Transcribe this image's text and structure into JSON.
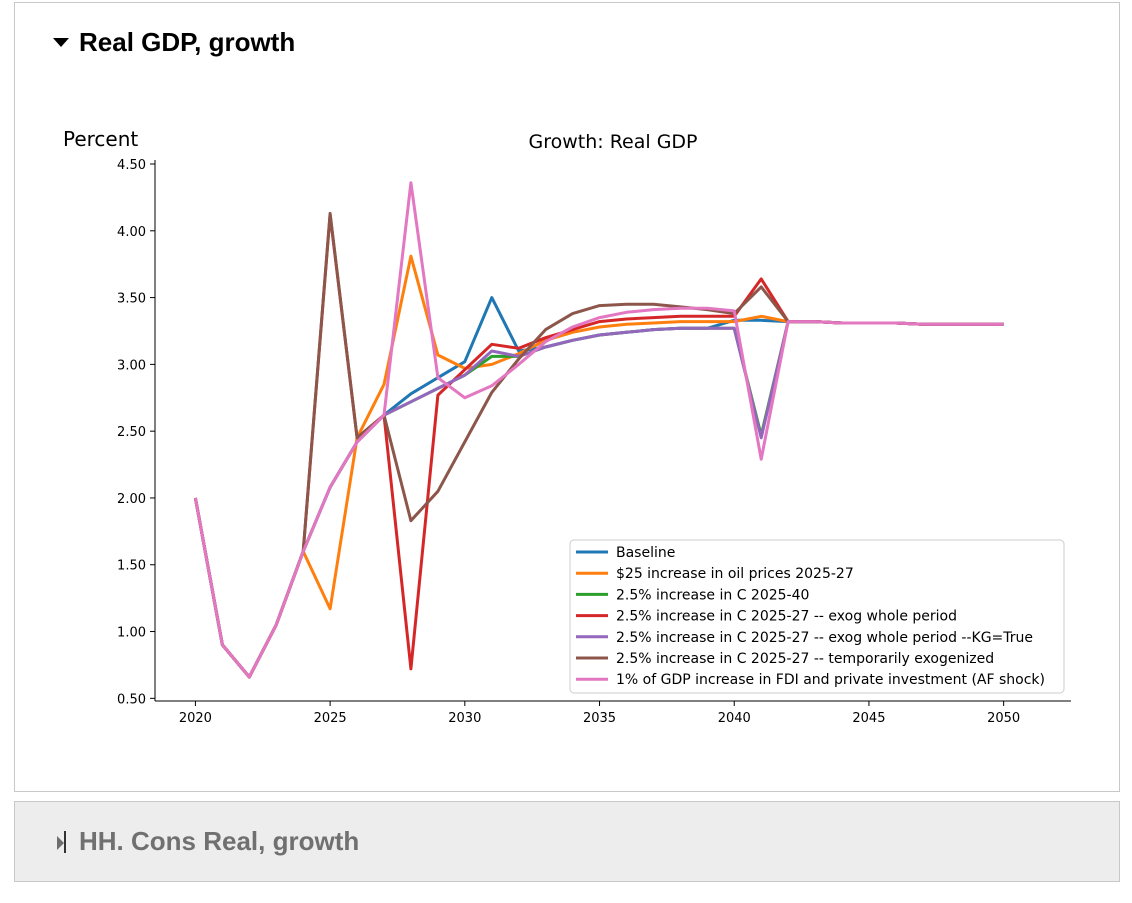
{
  "panels": [
    {
      "title": "Real GDP, growth",
      "expanded": true
    },
    {
      "title": "HH. Cons Real, growth",
      "expanded": false
    }
  ],
  "chart_data": {
    "type": "line",
    "title": "Growth: Real GDP",
    "ylabel": "Percent",
    "xlabel": "",
    "xlim": [
      2018.5,
      2052.5
    ],
    "ylim": [
      0.48,
      4.53
    ],
    "xticks": [
      2020,
      2025,
      2030,
      2035,
      2040,
      2045,
      2050
    ],
    "yticks": [
      0.5,
      1.0,
      1.5,
      2.0,
      2.5,
      3.0,
      3.5,
      4.0,
      4.5
    ],
    "ytick_labels": [
      "0.50",
      "1.00",
      "1.50",
      "2.00",
      "2.50",
      "3.00",
      "3.50",
      "4.00",
      "4.50"
    ],
    "grid": false,
    "legend_position": "lower-right",
    "x": [
      2020,
      2021,
      2022,
      2023,
      2024,
      2025,
      2026,
      2027,
      2028,
      2029,
      2030,
      2031,
      2032,
      2033,
      2034,
      2035,
      2036,
      2037,
      2038,
      2039,
      2040,
      2041,
      2042,
      2043,
      2044,
      2045,
      2046,
      2047,
      2048,
      2049,
      2050
    ],
    "series": [
      {
        "name": "Baseline",
        "color": "#1f77b4",
        "values": [
          2.0,
          0.9,
          0.66,
          1.05,
          1.6,
          2.08,
          2.42,
          2.62,
          2.78,
          2.9,
          3.02,
          3.5,
          3.1,
          3.13,
          3.18,
          3.22,
          3.24,
          3.26,
          3.27,
          3.27,
          3.33,
          3.33,
          3.32,
          3.32,
          3.31,
          3.31,
          3.31,
          3.3,
          3.3,
          3.3,
          3.3
        ]
      },
      {
        "name": "$25 increase in oil prices 2025-27",
        "color": "#ff7f0e",
        "values": [
          2.0,
          0.9,
          0.66,
          1.05,
          1.6,
          1.17,
          2.45,
          2.85,
          3.81,
          3.07,
          2.97,
          3.0,
          3.08,
          3.18,
          3.24,
          3.28,
          3.3,
          3.31,
          3.32,
          3.32,
          3.32,
          3.36,
          3.32,
          3.32,
          3.31,
          3.31,
          3.31,
          3.3,
          3.3,
          3.3,
          3.3
        ]
      },
      {
        "name": "2.5% increase in C 2025-40",
        "color": "#2ca02c",
        "values": [
          2.0,
          0.9,
          0.66,
          1.05,
          1.6,
          2.08,
          2.42,
          2.62,
          2.72,
          2.82,
          2.92,
          3.06,
          3.06,
          3.13,
          3.18,
          3.22,
          3.24,
          3.26,
          3.27,
          3.27,
          3.27,
          2.47,
          3.32,
          3.32,
          3.31,
          3.31,
          3.31,
          3.3,
          3.3,
          3.3,
          3.3
        ]
      },
      {
        "name": "2.5% increase in C 2025-27 -- exog whole period",
        "color": "#d62728",
        "values": [
          2.0,
          0.9,
          0.66,
          1.05,
          1.6,
          4.12,
          2.45,
          2.62,
          0.72,
          2.77,
          2.96,
          3.15,
          3.12,
          3.2,
          3.26,
          3.32,
          3.34,
          3.35,
          3.36,
          3.36,
          3.36,
          3.64,
          3.32,
          3.32,
          3.31,
          3.31,
          3.31,
          3.3,
          3.3,
          3.3,
          3.3
        ]
      },
      {
        "name": "2.5% increase in C 2025-27 -- exog whole period --KG=True",
        "color": "#9467bd",
        "values": [
          2.0,
          0.9,
          0.66,
          1.05,
          1.6,
          2.08,
          2.42,
          2.62,
          2.72,
          2.82,
          2.92,
          3.1,
          3.06,
          3.13,
          3.18,
          3.22,
          3.24,
          3.26,
          3.27,
          3.27,
          3.27,
          2.45,
          3.32,
          3.32,
          3.31,
          3.31,
          3.31,
          3.3,
          3.3,
          3.3,
          3.3
        ]
      },
      {
        "name": "2.5% increase in C 2025-27 -- temporarily exogenized",
        "color": "#8c564b",
        "values": [
          2.0,
          0.9,
          0.66,
          1.05,
          1.6,
          4.13,
          2.45,
          2.62,
          1.83,
          2.05,
          2.42,
          2.79,
          3.04,
          3.26,
          3.38,
          3.44,
          3.45,
          3.45,
          3.43,
          3.41,
          3.38,
          3.58,
          3.32,
          3.32,
          3.31,
          3.31,
          3.31,
          3.3,
          3.3,
          3.3,
          3.3
        ]
      },
      {
        "name": "1% of GDP increase in FDI and private investment (AF shock)",
        "color": "#e377c2",
        "values": [
          2.0,
          0.9,
          0.66,
          1.05,
          1.6,
          2.08,
          2.42,
          2.62,
          4.36,
          2.9,
          2.75,
          2.84,
          3.0,
          3.17,
          3.28,
          3.35,
          3.39,
          3.41,
          3.42,
          3.42,
          3.4,
          2.29,
          3.32,
          3.32,
          3.31,
          3.31,
          3.31,
          3.3,
          3.3,
          3.3,
          3.3
        ]
      }
    ]
  }
}
